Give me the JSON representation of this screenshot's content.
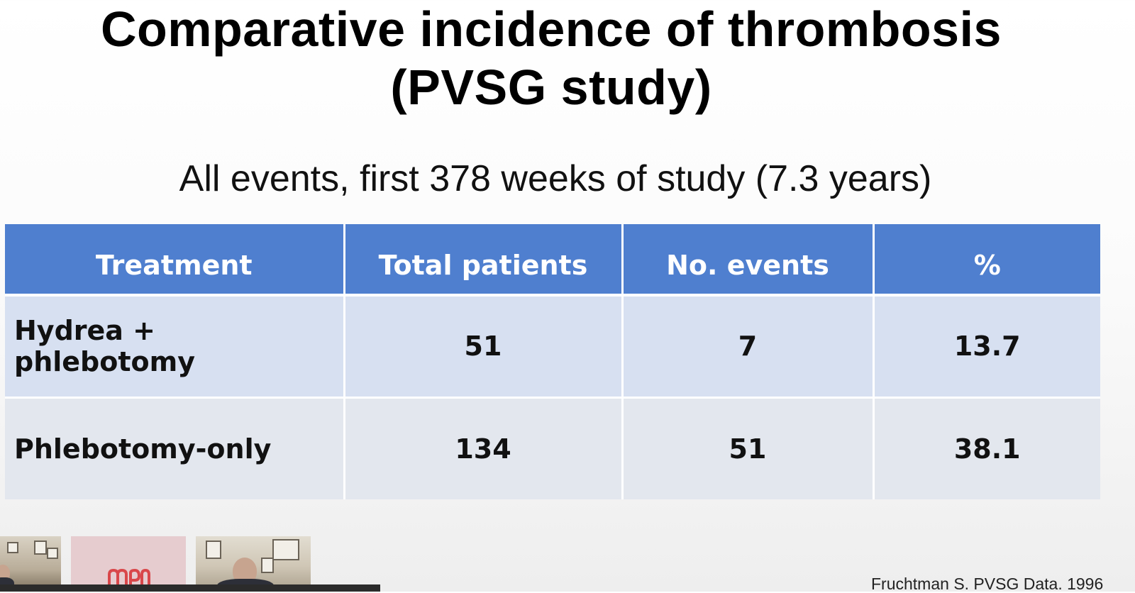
{
  "slide": {
    "title_line1": "Comparative incidence of thrombosis",
    "title_line2": "(PVSG study)",
    "subtitle": "All events, first 378 weeks of study (7.3 years)",
    "citation": "Fruchtman S. PVSG Data. 1996"
  },
  "table": {
    "headers": [
      "Treatment",
      "Total patients",
      "No. events",
      "%"
    ],
    "rows": [
      [
        "Hydrea + phlebotomy",
        "51",
        "7",
        "13.7"
      ],
      [
        "Phlebotomy-only",
        "134",
        "51",
        "38.1"
      ]
    ]
  },
  "colors": {
    "header_bg": "#4f7fcf",
    "row1_bg": "#d7e0f1",
    "row2_bg": "#e3e7ee",
    "logo_red": "#d9474a"
  },
  "video_thumbnails": {
    "count": 3,
    "icons": [
      "participant-video-icon",
      "mpn-education-logo-icon",
      "participant-video-icon"
    ]
  }
}
